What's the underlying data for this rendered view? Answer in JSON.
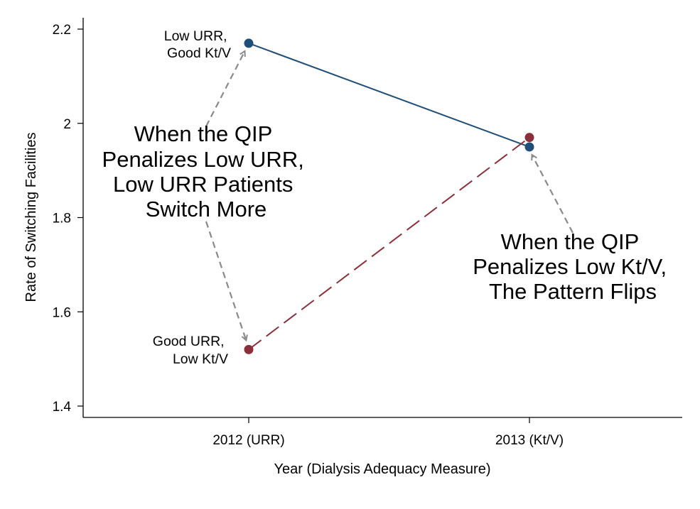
{
  "chart_data": {
    "type": "line",
    "x_categories": [
      "2012 (URR)",
      "2013 (Kt/V)"
    ],
    "xlabel": "Year (Dialysis Adequacy Measure)",
    "ylabel": "Rate of Switching Facilities",
    "ylim": [
      1.4,
      2.2
    ],
    "yticks": [
      "1.4",
      "1.6",
      "1.8",
      "2",
      "2.2"
    ],
    "grid": false,
    "series": [
      {
        "values": [
          2.17,
          1.95
        ],
        "color": "#1f4e79",
        "line_style": "solid"
      },
      {
        "values": [
          1.52,
          1.97
        ],
        "color": "#8b2f3a",
        "line_style": "dashed"
      }
    ],
    "point_labels": [
      {
        "lines": [
          "Low URR,",
          "Good Kt/V"
        ],
        "x": "2012 (URR)",
        "y": 2.17
      },
      {
        "lines": [
          "Good URR,",
          "Low Kt/V"
        ],
        "x": "2012 (URR)",
        "y": 1.52
      }
    ],
    "annotations": [
      {
        "lines": [
          "When the QIP",
          "Penalizes Low URR,",
          "Low URR Patients",
          "Switch More"
        ]
      },
      {
        "lines": [
          "When the QIP",
          "Penalizes Low Kt/V,",
          "The Pattern Flips"
        ]
      }
    ],
    "arrow_color": "#8a8a8a"
  }
}
